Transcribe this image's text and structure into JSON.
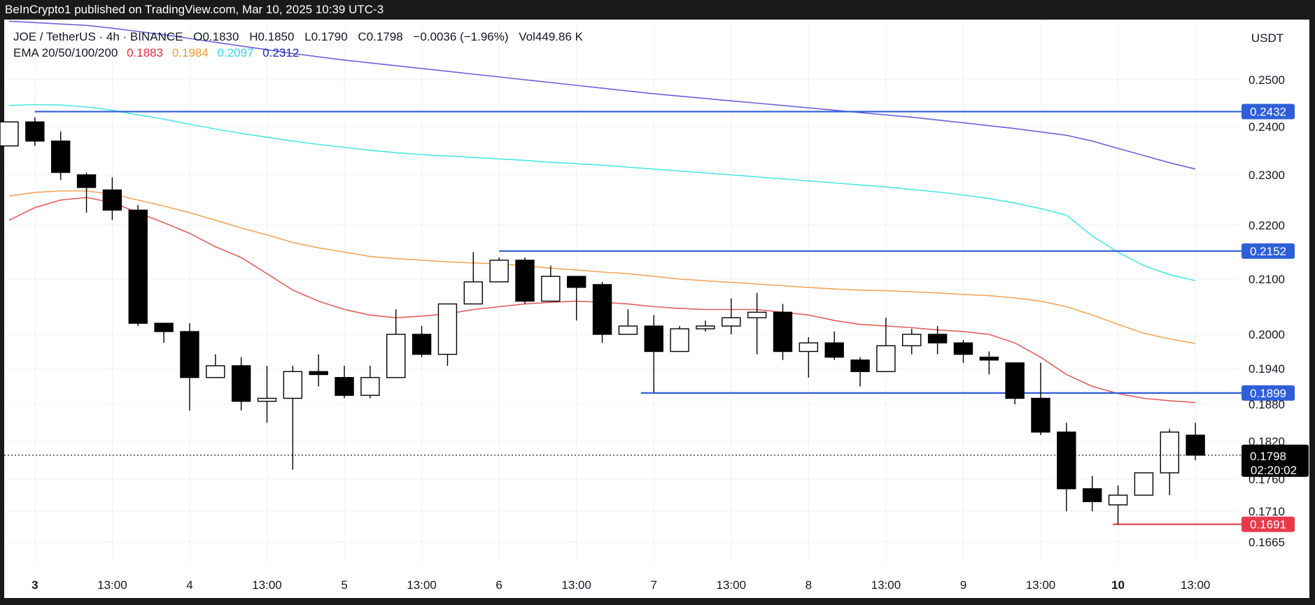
{
  "header": {
    "published": "BeInCrypto1 published on TradingView.com, Mar 10, 2025 10:39 UTC-3"
  },
  "legend": {
    "symbol": "JOE / TetherUS · 4h · BINANCE",
    "open_label": "O",
    "open": "0.1830",
    "high_label": "H",
    "high": "0.1850",
    "low_label": "L",
    "low": "0.1790",
    "close_label": "C",
    "close": "0.1798",
    "change": "−0.0036 (−1.96%)",
    "vol_label": "Vol",
    "vol": "449.86 K",
    "ema_label": "EMA 20/50/100/200",
    "ema20": "0.1883",
    "ema50": "0.1984",
    "ema100": "0.2097",
    "ema200": "0.2312"
  },
  "currency": "USDT",
  "colors": {
    "ema20": "#e35d5d",
    "ema50": "#f2a65a",
    "ema100": "#4ee6e6",
    "ema200": "#6a63d9",
    "level": "#2f5fd8",
    "support": "#e8394b",
    "candle_up": "#ffffff",
    "candle_down": "#000000"
  },
  "chart_data": {
    "type": "candlestick",
    "timeframe": "4h",
    "y_ticks": [
      "0.2500",
      "0.2400",
      "0.2300",
      "0.2200",
      "0.2100",
      "0.2000",
      "0.1940",
      "0.1880",
      "0.1820",
      "0.1760",
      "0.1710",
      "0.1665"
    ],
    "x_ticks": [
      {
        "label": "3",
        "bold": true,
        "i": 1
      },
      {
        "label": "13:00",
        "bold": false,
        "i": 4
      },
      {
        "label": "4",
        "bold": false,
        "i": 7
      },
      {
        "label": "13:00",
        "bold": false,
        "i": 10
      },
      {
        "label": "5",
        "bold": false,
        "i": 13
      },
      {
        "label": "13:00",
        "bold": false,
        "i": 16
      },
      {
        "label": "6",
        "bold": false,
        "i": 19
      },
      {
        "label": "13:00",
        "bold": false,
        "i": 22
      },
      {
        "label": "7",
        "bold": false,
        "i": 25
      },
      {
        "label": "13:00",
        "bold": false,
        "i": 28
      },
      {
        "label": "8",
        "bold": false,
        "i": 31
      },
      {
        "label": "13:00",
        "bold": false,
        "i": 34
      },
      {
        "label": "9",
        "bold": false,
        "i": 37
      },
      {
        "label": "13:00",
        "bold": false,
        "i": 40
      },
      {
        "label": "10",
        "bold": true,
        "i": 43
      },
      {
        "label": "13:00",
        "bold": false,
        "i": 46
      }
    ],
    "candles": [
      {
        "o": 0.236,
        "h": 0.241,
        "l": 0.236,
        "c": 0.241
      },
      {
        "o": 0.241,
        "h": 0.242,
        "l": 0.236,
        "c": 0.237
      },
      {
        "o": 0.237,
        "h": 0.239,
        "l": 0.229,
        "c": 0.2305
      },
      {
        "o": 0.23,
        "h": 0.2305,
        "l": 0.2225,
        "c": 0.2275
      },
      {
        "o": 0.227,
        "h": 0.2295,
        "l": 0.221,
        "c": 0.223
      },
      {
        "o": 0.223,
        "h": 0.224,
        "l": 0.2015,
        "c": 0.202
      },
      {
        "o": 0.202,
        "h": 0.202,
        "l": 0.1985,
        "c": 0.2005
      },
      {
        "o": 0.2005,
        "h": 0.202,
        "l": 0.187,
        "c": 0.1925
      },
      {
        "o": 0.1925,
        "h": 0.1965,
        "l": 0.1925,
        "c": 0.1945
      },
      {
        "o": 0.1945,
        "h": 0.196,
        "l": 0.187,
        "c": 0.1885
      },
      {
        "o": 0.1885,
        "h": 0.1945,
        "l": 0.185,
        "c": 0.189
      },
      {
        "o": 0.189,
        "h": 0.1945,
        "l": 0.1775,
        "c": 0.1935
      },
      {
        "o": 0.1935,
        "h": 0.1965,
        "l": 0.191,
        "c": 0.193
      },
      {
        "o": 0.1925,
        "h": 0.1945,
        "l": 0.189,
        "c": 0.1895
      },
      {
        "o": 0.1895,
        "h": 0.1945,
        "l": 0.189,
        "c": 0.1925
      },
      {
        "o": 0.1925,
        "h": 0.2045,
        "l": 0.1925,
        "c": 0.2
      },
      {
        "o": 0.2,
        "h": 0.2015,
        "l": 0.196,
        "c": 0.1965
      },
      {
        "o": 0.1965,
        "h": 0.2055,
        "l": 0.1945,
        "c": 0.2055
      },
      {
        "o": 0.2055,
        "h": 0.215,
        "l": 0.2055,
        "c": 0.2095
      },
      {
        "o": 0.2095,
        "h": 0.214,
        "l": 0.2095,
        "c": 0.2135
      },
      {
        "o": 0.2135,
        "h": 0.214,
        "l": 0.2055,
        "c": 0.206
      },
      {
        "o": 0.206,
        "h": 0.2125,
        "l": 0.206,
        "c": 0.2105
      },
      {
        "o": 0.2105,
        "h": 0.2105,
        "l": 0.2025,
        "c": 0.2085
      },
      {
        "o": 0.209,
        "h": 0.2095,
        "l": 0.1985,
        "c": 0.2
      },
      {
        "o": 0.2,
        "h": 0.2045,
        "l": 0.2,
        "c": 0.2015
      },
      {
        "o": 0.2015,
        "h": 0.2035,
        "l": 0.19,
        "c": 0.197
      },
      {
        "o": 0.197,
        "h": 0.2015,
        "l": 0.197,
        "c": 0.201
      },
      {
        "o": 0.201,
        "h": 0.2025,
        "l": 0.2005,
        "c": 0.2015
      },
      {
        "o": 0.2015,
        "h": 0.2065,
        "l": 0.2,
        "c": 0.203
      },
      {
        "o": 0.203,
        "h": 0.2075,
        "l": 0.1965,
        "c": 0.204
      },
      {
        "o": 0.204,
        "h": 0.2055,
        "l": 0.1955,
        "c": 0.197
      },
      {
        "o": 0.197,
        "h": 0.1995,
        "l": 0.1925,
        "c": 0.1985
      },
      {
        "o": 0.1985,
        "h": 0.2005,
        "l": 0.1955,
        "c": 0.196
      },
      {
        "o": 0.1955,
        "h": 0.196,
        "l": 0.191,
        "c": 0.1935
      },
      {
        "o": 0.1935,
        "h": 0.203,
        "l": 0.1935,
        "c": 0.198
      },
      {
        "o": 0.198,
        "h": 0.201,
        "l": 0.1965,
        "c": 0.2
      },
      {
        "o": 0.2,
        "h": 0.2015,
        "l": 0.1965,
        "c": 0.1985
      },
      {
        "o": 0.1985,
        "h": 0.199,
        "l": 0.195,
        "c": 0.1965
      },
      {
        "o": 0.196,
        "h": 0.197,
        "l": 0.193,
        "c": 0.1955
      },
      {
        "o": 0.195,
        "h": 0.195,
        "l": 0.188,
        "c": 0.189
      },
      {
        "o": 0.189,
        "h": 0.195,
        "l": 0.183,
        "c": 0.1835
      },
      {
        "o": 0.1835,
        "h": 0.185,
        "l": 0.171,
        "c": 0.1745
      },
      {
        "o": 0.1745,
        "h": 0.1765,
        "l": 0.171,
        "c": 0.1725
      },
      {
        "o": 0.172,
        "h": 0.175,
        "l": 0.1691,
        "c": 0.1735
      },
      {
        "o": 0.1735,
        "h": 0.1765,
        "l": 0.1735,
        "c": 0.177
      },
      {
        "o": 0.177,
        "h": 0.184,
        "l": 0.1735,
        "c": 0.1835
      },
      {
        "o": 0.183,
        "h": 0.185,
        "l": 0.179,
        "c": 0.1798
      }
    ],
    "ema20": [
      0.221,
      0.2235,
      0.225,
      0.2255,
      0.2245,
      0.2225,
      0.2205,
      0.2185,
      0.216,
      0.214,
      0.211,
      0.208,
      0.206,
      0.2045,
      0.2035,
      0.203,
      0.2033,
      0.2037,
      0.2045,
      0.205,
      0.2055,
      0.2058,
      0.206,
      0.2058,
      0.2055,
      0.205,
      0.2047,
      0.2045,
      0.2045,
      0.2045,
      0.204,
      0.2035,
      0.2025,
      0.2018,
      0.2015,
      0.2012,
      0.2008,
      0.2005,
      0.2,
      0.1985,
      0.196,
      0.193,
      0.191,
      0.1898,
      0.189,
      0.1886,
      0.1883
    ],
    "ema50": [
      0.2258,
      0.2265,
      0.2268,
      0.2268,
      0.2262,
      0.225,
      0.2238,
      0.2225,
      0.221,
      0.2195,
      0.2182,
      0.2168,
      0.2158,
      0.215,
      0.2142,
      0.2138,
      0.2135,
      0.2132,
      0.213,
      0.2128,
      0.2125,
      0.212,
      0.2117,
      0.2113,
      0.211,
      0.2105,
      0.21,
      0.2097,
      0.2094,
      0.2091,
      0.2088,
      0.2085,
      0.2082,
      0.208,
      0.2079,
      0.2077,
      0.2075,
      0.2072,
      0.207,
      0.2066,
      0.206,
      0.205,
      0.2035,
      0.2018,
      0.2002,
      0.1992,
      0.1984
    ],
    "ema100": [
      0.2445,
      0.2447,
      0.2446,
      0.2442,
      0.2435,
      0.2425,
      0.2416,
      0.2405,
      0.2395,
      0.2386,
      0.2378,
      0.237,
      0.2363,
      0.2357,
      0.2351,
      0.2346,
      0.2342,
      0.2339,
      0.2336,
      0.2333,
      0.233,
      0.2326,
      0.2323,
      0.232,
      0.2316,
      0.2312,
      0.2308,
      0.2304,
      0.23,
      0.2296,
      0.2292,
      0.2288,
      0.2284,
      0.228,
      0.2276,
      0.2271,
      0.2266,
      0.226,
      0.2253,
      0.2244,
      0.2233,
      0.222,
      0.218,
      0.215,
      0.2125,
      0.2108,
      0.2097
    ],
    "ema200": [
      0.2625,
      0.2622,
      0.2619,
      0.2616,
      0.261,
      0.2603,
      0.2596,
      0.2588,
      0.258,
      0.2572,
      0.2564,
      0.2556,
      0.2549,
      0.2542,
      0.2536,
      0.253,
      0.2524,
      0.2518,
      0.2512,
      0.2506,
      0.25,
      0.2494,
      0.2488,
      0.2482,
      0.2476,
      0.247,
      0.2465,
      0.246,
      0.2455,
      0.245,
      0.2445,
      0.244,
      0.2435,
      0.243,
      0.2425,
      0.242,
      0.2414,
      0.2408,
      0.2402,
      0.2396,
      0.2389,
      0.2382,
      0.237,
      0.2355,
      0.234,
      0.2325,
      0.2312
    ],
    "levels": [
      {
        "value": "0.2432",
        "color": "level",
        "from_i": 1
      },
      {
        "value": "0.2152",
        "color": "level",
        "from_i": 19
      },
      {
        "value": "0.1899",
        "color": "level",
        "from_i": 24.5
      },
      {
        "value": "0.1691",
        "color": "support",
        "from_i": 42.8
      }
    ],
    "last_price": {
      "value": "0.1798",
      "countdown": "02:20:02"
    }
  }
}
